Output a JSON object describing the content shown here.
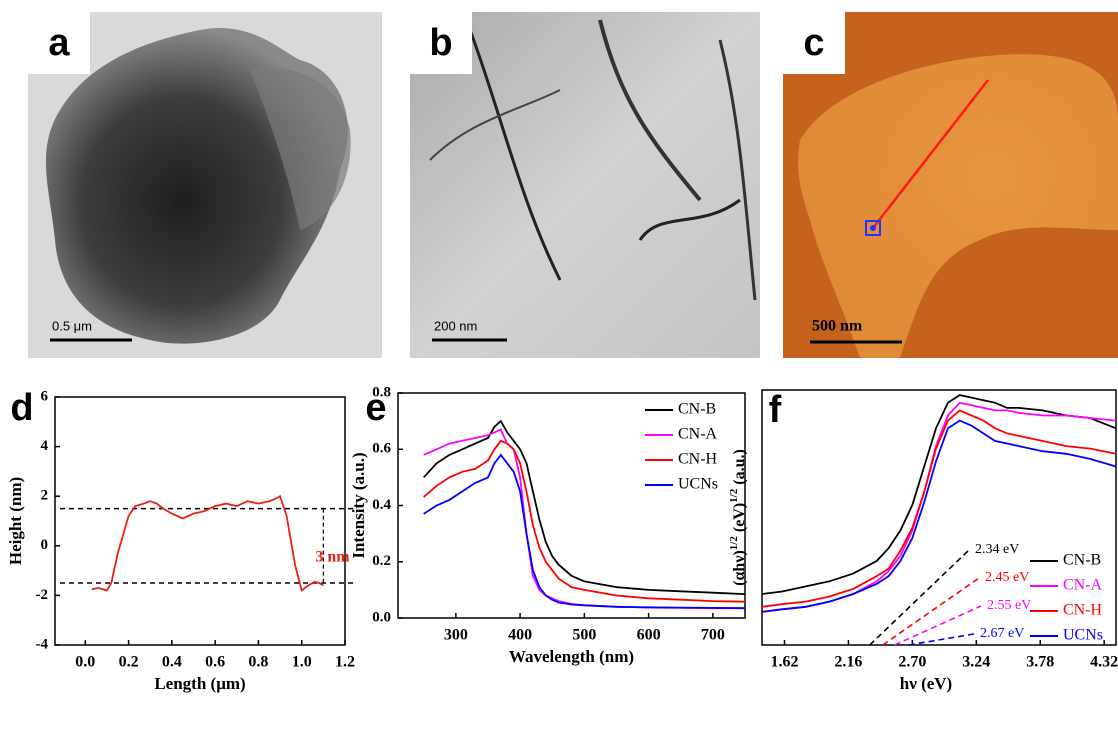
{
  "images": [
    {
      "panel": "a",
      "scale_bar": "0.5 μm"
    },
    {
      "panel": "b",
      "scale_bar": "200 nm"
    },
    {
      "panel": "c",
      "scale_bar": "500 nm"
    }
  ],
  "chart_data": [
    {
      "type": "line",
      "panel": "d",
      "x_label": "Length (μm)",
      "y_label": "Height (nm)",
      "color": "#e8201c",
      "x": [
        0.03,
        0.06,
        0.1,
        0.12,
        0.15,
        0.2,
        0.23,
        0.27,
        0.3,
        0.33,
        0.36,
        0.4,
        0.45,
        0.5,
        0.55,
        0.6,
        0.65,
        0.7,
        0.75,
        0.8,
        0.85,
        0.88,
        0.9,
        0.93,
        0.97,
        1.0,
        1.03,
        1.06,
        1.08,
        1.1
      ],
      "values": [
        -1.75,
        -1.7,
        -1.8,
        -1.5,
        -0.3,
        1.2,
        1.6,
        1.7,
        1.8,
        1.7,
        1.5,
        1.3,
        1.1,
        1.3,
        1.4,
        1.6,
        1.7,
        1.6,
        1.8,
        1.7,
        1.8,
        1.9,
        2.0,
        1.2,
        -0.8,
        -1.8,
        -1.6,
        -1.45,
        -1.5,
        -1.6
      ],
      "xlim": [
        -0.14,
        1.2
      ],
      "ylim": [
        -4,
        6
      ],
      "xticks": [
        {
          "value": 0,
          "label": "0.0"
        },
        0.2,
        0.4,
        0.6,
        0.8,
        {
          "value": 1,
          "label": "1.0"
        },
        1.2
      ],
      "yticks": [
        -4,
        -2,
        0,
        2,
        4,
        6
      ],
      "reference_lines": [
        1.5,
        -1.5
      ],
      "annotation": {
        "text": "3 nm",
        "color": "#e8201c",
        "x": 1.1
      }
    },
    {
      "type": "line",
      "panel": "e",
      "x_label": "Wavelength (nm)",
      "y_label": "Intensity (a.u.)",
      "legend": "upper right",
      "x": [
        250,
        270,
        290,
        310,
        330,
        350,
        360,
        370,
        380,
        390,
        400,
        410,
        420,
        430,
        440,
        450,
        460,
        480,
        500,
        550,
        600,
        650,
        700,
        750
      ],
      "series": [
        {
          "name": "CN-B",
          "color": "#000000",
          "values": [
            0.5,
            0.55,
            0.58,
            0.6,
            0.62,
            0.64,
            0.68,
            0.7,
            0.66,
            0.63,
            0.6,
            0.55,
            0.45,
            0.35,
            0.27,
            0.22,
            0.19,
            0.15,
            0.13,
            0.11,
            0.1,
            0.095,
            0.09,
            0.085
          ]
        },
        {
          "name": "CN-A",
          "color": "#ff00ff",
          "values": [
            0.58,
            0.6,
            0.62,
            0.63,
            0.64,
            0.65,
            0.66,
            0.67,
            0.62,
            0.6,
            0.5,
            0.3,
            0.15,
            0.1,
            0.08,
            0.07,
            0.06,
            0.05,
            0.045,
            0.04,
            0.037,
            0.036,
            0.035,
            0.035
          ]
        },
        {
          "name": "CN-H",
          "color": "#ff0000",
          "values": [
            0.43,
            0.47,
            0.5,
            0.52,
            0.53,
            0.56,
            0.6,
            0.63,
            0.62,
            0.6,
            0.55,
            0.45,
            0.33,
            0.25,
            0.2,
            0.17,
            0.14,
            0.11,
            0.1,
            0.08,
            0.07,
            0.065,
            0.06,
            0.058
          ]
        },
        {
          "name": "UCNs",
          "color": "#0000ff",
          "values": [
            0.37,
            0.4,
            0.42,
            0.45,
            0.48,
            0.5,
            0.55,
            0.58,
            0.55,
            0.52,
            0.45,
            0.3,
            0.17,
            0.11,
            0.08,
            0.065,
            0.055,
            0.048,
            0.045,
            0.04,
            0.038,
            0.037,
            0.036,
            0.035
          ]
        }
      ],
      "xlim": [
        210,
        750
      ],
      "ylim": [
        0,
        0.8
      ],
      "xticks": [
        300,
        400,
        500,
        600,
        700
      ],
      "yticks": [
        {
          "value": 0,
          "label": "0.0"
        },
        0.2,
        0.4,
        0.6,
        0.8
      ]
    },
    {
      "type": "line",
      "panel": "f",
      "x_label": "hν (eV)",
      "y_label": [
        "(αhν)",
        "1/2",
        " (eV)",
        "1/2",
        " (a.u.)"
      ],
      "legend": "lower right",
      "x": [
        1.43,
        1.6,
        1.8,
        2.0,
        2.2,
        2.4,
        2.5,
        2.6,
        2.7,
        2.8,
        2.9,
        3.0,
        3.1,
        3.2,
        3.3,
        3.4,
        3.5,
        3.6,
        3.8,
        4.0,
        4.2,
        4.42
      ],
      "series": [
        {
          "name": "CN-B",
          "color": "#000000",
          "values": [
            0.2,
            0.21,
            0.23,
            0.25,
            0.28,
            0.33,
            0.38,
            0.45,
            0.55,
            0.7,
            0.85,
            0.95,
            0.98,
            0.97,
            0.96,
            0.95,
            0.93,
            0.93,
            0.92,
            0.9,
            0.89,
            0.85
          ]
        },
        {
          "name": "CN-A",
          "color": "#ff00ff",
          "values": [
            0.13,
            0.14,
            0.15,
            0.17,
            0.2,
            0.25,
            0.29,
            0.35,
            0.45,
            0.6,
            0.78,
            0.9,
            0.95,
            0.94,
            0.93,
            0.92,
            0.92,
            0.91,
            0.9,
            0.9,
            0.89,
            0.88
          ]
        },
        {
          "name": "CN-H",
          "color": "#ff0000",
          "values": [
            0.15,
            0.16,
            0.17,
            0.19,
            0.22,
            0.27,
            0.3,
            0.37,
            0.46,
            0.6,
            0.77,
            0.88,
            0.92,
            0.9,
            0.88,
            0.85,
            0.83,
            0.82,
            0.8,
            0.78,
            0.77,
            0.75
          ]
        },
        {
          "name": "UCNs",
          "color": "#0000ff",
          "values": [
            0.13,
            0.14,
            0.15,
            0.17,
            0.2,
            0.24,
            0.27,
            0.33,
            0.42,
            0.56,
            0.72,
            0.85,
            0.88,
            0.86,
            0.83,
            0.8,
            0.79,
            0.78,
            0.76,
            0.75,
            0.73,
            0.7
          ]
        }
      ],
      "xlim": [
        1.43,
        4.42
      ],
      "ylim": [
        0,
        1
      ],
      "xticks": [
        1.62,
        2.16,
        {
          "value": 2.7,
          "label": "2.70"
        },
        3.24,
        3.78,
        4.32
      ],
      "band_gaps": [
        {
          "value": 2.34,
          "label": "2.34 eV",
          "color": "#000000"
        },
        {
          "value": 2.45,
          "label": "2.45 eV",
          "color": "#ff0000"
        },
        {
          "value": 2.55,
          "label": "2.55 eV",
          "color": "#ff00ff"
        },
        {
          "value": 2.67,
          "label": "2.67 eV",
          "color": "#0000ff"
        }
      ]
    }
  ]
}
